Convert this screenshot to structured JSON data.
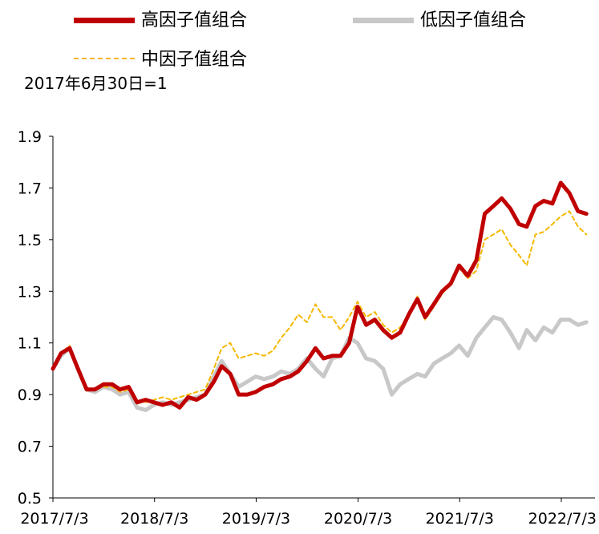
{
  "note": "2017年6月30日=1",
  "chart_data": {
    "type": "line",
    "title": "",
    "xlabel": "",
    "ylabel": "",
    "ylim": [
      0.5,
      1.9
    ],
    "yticks": [
      "0.5",
      "0.7",
      "0.9",
      "1.1",
      "1.3",
      "1.5",
      "1.7",
      "1.9"
    ],
    "xticks": [
      "2017/7/3",
      "2018/7/3",
      "2019/7/3",
      "2020/7/3",
      "2021/7/3",
      "2022/7/3"
    ],
    "grid": false,
    "legend_position": "top",
    "series": [
      {
        "name": "高因子值组合",
        "color": "#C00000",
        "style": "solid-thick",
        "x": [
          "2017/7/3",
          "2017/8/1",
          "2017/9/1",
          "2017/10/1",
          "2017/11/1",
          "2017/12/1",
          "2018/1/1",
          "2018/2/1",
          "2018/3/1",
          "2018/4/1",
          "2018/5/1",
          "2018/6/1",
          "2018/7/1",
          "2018/8/1",
          "2018/9/1",
          "2018/10/1",
          "2018/11/1",
          "2018/12/1",
          "2019/1/1",
          "2019/2/1",
          "2019/3/1",
          "2019/4/1",
          "2019/5/1",
          "2019/6/1",
          "2019/7/1",
          "2019/8/1",
          "2019/9/1",
          "2019/10/1",
          "2019/11/1",
          "2019/12/1",
          "2020/1/1",
          "2020/2/1",
          "2020/3/1",
          "2020/4/1",
          "2020/5/1",
          "2020/6/1",
          "2020/7/1",
          "2020/8/1",
          "2020/9/1",
          "2020/10/1",
          "2020/11/1",
          "2020/12/1",
          "2021/1/1",
          "2021/2/1",
          "2021/3/1",
          "2021/4/1",
          "2021/5/1",
          "2021/6/1",
          "2021/7/1",
          "2021/8/1",
          "2021/9/1",
          "2021/10/1",
          "2021/11/1",
          "2021/12/1",
          "2022/1/1",
          "2022/2/1",
          "2022/3/1",
          "2022/4/1",
          "2022/5/1",
          "2022/6/1",
          "2022/7/1",
          "2022/8/1",
          "2022/9/1",
          "2022/10/1"
        ],
        "values": [
          1.0,
          1.06,
          1.08,
          1.0,
          0.92,
          0.92,
          0.94,
          0.94,
          0.92,
          0.93,
          0.87,
          0.88,
          0.87,
          0.86,
          0.87,
          0.85,
          0.89,
          0.88,
          0.9,
          0.95,
          1.01,
          0.98,
          0.9,
          0.9,
          0.91,
          0.93,
          0.94,
          0.96,
          0.97,
          0.99,
          1.03,
          1.08,
          1.04,
          1.05,
          1.05,
          1.1,
          1.24,
          1.17,
          1.19,
          1.15,
          1.12,
          1.14,
          1.21,
          1.27,
          1.2,
          1.25,
          1.3,
          1.33,
          1.4,
          1.36,
          1.42,
          1.6,
          1.63,
          1.66,
          1.62,
          1.56,
          1.55,
          1.63,
          1.65,
          1.64,
          1.72,
          1.68,
          1.61,
          1.6
        ]
      },
      {
        "name": "低因子值组合",
        "color": "#C8C8C8",
        "style": "solid-thick",
        "x": [
          "2017/7/3",
          "2017/8/1",
          "2017/9/1",
          "2017/10/1",
          "2017/11/1",
          "2017/12/1",
          "2018/1/1",
          "2018/2/1",
          "2018/3/1",
          "2018/4/1",
          "2018/5/1",
          "2018/6/1",
          "2018/7/1",
          "2018/8/1",
          "2018/9/1",
          "2018/10/1",
          "2018/11/1",
          "2018/12/1",
          "2019/1/1",
          "2019/2/1",
          "2019/3/1",
          "2019/4/1",
          "2019/5/1",
          "2019/6/1",
          "2019/7/1",
          "2019/8/1",
          "2019/9/1",
          "2019/10/1",
          "2019/11/1",
          "2019/12/1",
          "2020/1/1",
          "2020/2/1",
          "2020/3/1",
          "2020/4/1",
          "2020/5/1",
          "2020/6/1",
          "2020/7/1",
          "2020/8/1",
          "2020/9/1",
          "2020/10/1",
          "2020/11/1",
          "2020/12/1",
          "2021/1/1",
          "2021/2/1",
          "2021/3/1",
          "2021/4/1",
          "2021/5/1",
          "2021/6/1",
          "2021/7/1",
          "2021/8/1",
          "2021/9/1",
          "2021/10/1",
          "2021/11/1",
          "2021/12/1",
          "2022/1/1",
          "2022/2/1",
          "2022/3/1",
          "2022/4/1",
          "2022/5/1",
          "2022/6/1",
          "2022/7/1",
          "2022/8/1",
          "2022/9/1",
          "2022/10/1"
        ],
        "values": [
          1.0,
          1.05,
          1.08,
          1.0,
          0.92,
          0.91,
          0.93,
          0.92,
          0.9,
          0.91,
          0.85,
          0.84,
          0.86,
          0.87,
          0.86,
          0.87,
          0.88,
          0.89,
          0.9,
          0.97,
          1.03,
          0.98,
          0.93,
          0.95,
          0.97,
          0.96,
          0.97,
          0.99,
          0.98,
          1.0,
          1.04,
          1.0,
          0.97,
          1.04,
          1.05,
          1.12,
          1.1,
          1.04,
          1.03,
          1.0,
          0.9,
          0.94,
          0.96,
          0.98,
          0.97,
          1.02,
          1.04,
          1.06,
          1.09,
          1.05,
          1.12,
          1.16,
          1.2,
          1.19,
          1.14,
          1.08,
          1.15,
          1.11,
          1.16,
          1.14,
          1.19,
          1.19,
          1.17,
          1.18
        ]
      },
      {
        "name": "中因子值组合",
        "color": "#F5B800",
        "style": "dashed",
        "x": [
          "2017/7/3",
          "2017/8/1",
          "2017/9/1",
          "2017/10/1",
          "2017/11/1",
          "2017/12/1",
          "2018/1/1",
          "2018/2/1",
          "2018/3/1",
          "2018/4/1",
          "2018/5/1",
          "2018/6/1",
          "2018/7/1",
          "2018/8/1",
          "2018/9/1",
          "2018/10/1",
          "2018/11/1",
          "2018/12/1",
          "2019/1/1",
          "2019/2/1",
          "2019/3/1",
          "2019/4/1",
          "2019/5/1",
          "2019/6/1",
          "2019/7/1",
          "2019/8/1",
          "2019/9/1",
          "2019/10/1",
          "2019/11/1",
          "2019/12/1",
          "2020/1/1",
          "2020/2/1",
          "2020/3/1",
          "2020/4/1",
          "2020/5/1",
          "2020/6/1",
          "2020/7/1",
          "2020/8/1",
          "2020/9/1",
          "2020/10/1",
          "2020/11/1",
          "2020/12/1",
          "2021/1/1",
          "2021/2/1",
          "2021/3/1",
          "2021/4/1",
          "2021/5/1",
          "2021/6/1",
          "2021/7/1",
          "2021/8/1",
          "2021/9/1",
          "2021/10/1",
          "2021/11/1",
          "2021/12/1",
          "2022/1/1",
          "2022/2/1",
          "2022/3/1",
          "2022/4/1",
          "2022/5/1",
          "2022/6/1",
          "2022/7/1",
          "2022/8/1",
          "2022/9/1",
          "2022/10/1"
        ],
        "values": [
          1.0,
          1.06,
          1.09,
          1.0,
          0.92,
          0.92,
          0.93,
          0.93,
          0.91,
          0.92,
          0.87,
          0.87,
          0.88,
          0.89,
          0.88,
          0.89,
          0.9,
          0.91,
          0.92,
          1.0,
          1.08,
          1.1,
          1.04,
          1.05,
          1.06,
          1.05,
          1.07,
          1.12,
          1.16,
          1.21,
          1.18,
          1.25,
          1.2,
          1.2,
          1.15,
          1.2,
          1.26,
          1.2,
          1.22,
          1.17,
          1.14,
          1.16,
          1.21,
          1.28,
          1.19,
          1.24,
          1.29,
          1.33,
          1.39,
          1.35,
          1.38,
          1.5,
          1.52,
          1.54,
          1.48,
          1.44,
          1.4,
          1.52,
          1.53,
          1.56,
          1.59,
          1.61,
          1.55,
          1.52
        ]
      }
    ]
  }
}
